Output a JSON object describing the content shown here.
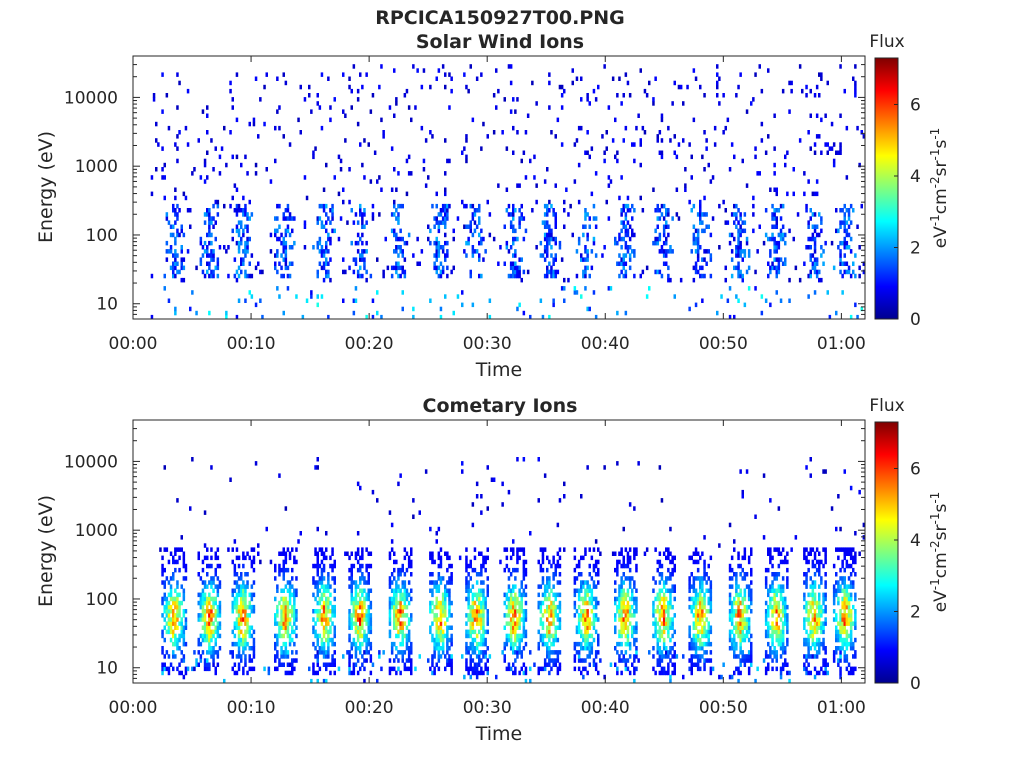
{
  "figure_title": "RPCICA150927T00.PNG",
  "chart_data": [
    {
      "type": "heatmap",
      "title": "Solar Wind Ions",
      "xlabel": "Time",
      "ylabel": "Energy (eV)",
      "x_ticks": [
        "00:00",
        "00:10",
        "00:20",
        "00:30",
        "00:40",
        "00:50",
        "01:00"
      ],
      "x_range_minutes": [
        0,
        62
      ],
      "y_scale": "log",
      "y_ticks": [
        10,
        100,
        1000,
        10000
      ],
      "y_tick_labels": [
        "10",
        "100",
        "1000",
        "10000"
      ],
      "y_range_eV": [
        6,
        40000
      ],
      "colorbar": {
        "title": "Flux",
        "label": "eV-1cm-2sr-1s-1",
        "range": [
          0,
          7.3
        ],
        "ticks": [
          0,
          2,
          4,
          6
        ],
        "colormap": "jet"
      },
      "pulse_centers_minutes": [
        3.4,
        6.4,
        9.2,
        12.8,
        16.1,
        19.1,
        22.5,
        25.9,
        29.0,
        32.2,
        35.2,
        38.3,
        41.6,
        44.8,
        48.0,
        51.3,
        54.4,
        57.6,
        60.2
      ],
      "pulse_core_flux": 1.6,
      "pulse_energy_eV": [
        25,
        300
      ],
      "background": "sparse low-flux counts 20 eV – 30000 eV",
      "grid": false
    },
    {
      "type": "heatmap",
      "title": "Cometary Ions",
      "xlabel": "Time",
      "ylabel": "Energy (eV)",
      "x_ticks": [
        "00:00",
        "00:10",
        "00:20",
        "00:30",
        "00:40",
        "00:50",
        "01:00"
      ],
      "x_range_minutes": [
        0,
        62
      ],
      "y_scale": "log",
      "y_ticks": [
        10,
        100,
        1000,
        10000
      ],
      "y_tick_labels": [
        "10",
        "100",
        "1000",
        "10000"
      ],
      "y_range_eV": [
        6,
        40000
      ],
      "colorbar": {
        "title": "Flux",
        "label": "eV-1cm-2sr-1s-1",
        "range": [
          0,
          7.3
        ],
        "ticks": [
          0,
          2,
          4,
          6
        ],
        "colormap": "jet"
      },
      "pulse_centers_minutes": [
        3.4,
        6.4,
        9.2,
        12.8,
        16.1,
        19.1,
        22.5,
        25.9,
        29.0,
        32.2,
        35.2,
        38.3,
        41.6,
        44.8,
        48.0,
        51.3,
        54.4,
        57.6,
        60.2
      ],
      "pulse_core_flux": 5.6,
      "pulse_peak_energy_eV": 55,
      "pulse_energy_eV": [
        8,
        600
      ],
      "background": "sparse low-flux counts 300 eV – 10000 eV",
      "grid": false
    }
  ]
}
